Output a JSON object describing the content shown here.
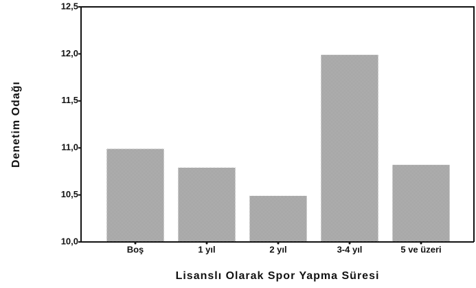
{
  "chart_data": {
    "type": "bar",
    "x_label": "Lisanslı Olarak Spor Yapma Süresi",
    "y_label": "Denetim Odağı",
    "categories": [
      "Boş",
      "1 yıl",
      "2 yıl",
      "3-4 yıl",
      "5 ve üzeri"
    ],
    "values": [
      10.99,
      10.79,
      10.49,
      11.99,
      10.82
    ],
    "color": "#555555",
    "ylim": [
      10,
      12.5
    ],
    "yticks": [
      {
        "value": 10,
        "label": "10,0"
      },
      {
        "value": 10.5,
        "label": "10,5"
      },
      {
        "value": 11,
        "label": "11,0"
      },
      {
        "value": 11.5,
        "label": "11,5"
      },
      {
        "value": 12,
        "label": "12,0"
      },
      {
        "value": 12.5,
        "label": "12,5"
      }
    ]
  }
}
